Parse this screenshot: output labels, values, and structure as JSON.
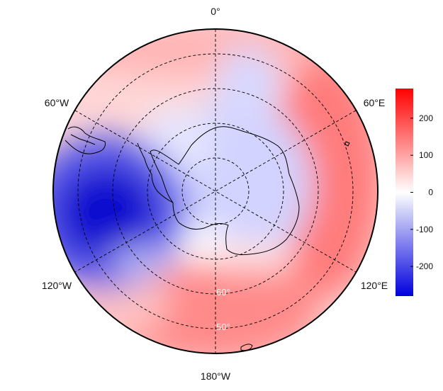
{
  "map": {
    "projection": "south-polar stereographic",
    "longitude_labels": {
      "top": "0°",
      "upper_left": "60°W",
      "upper_right": "60°E",
      "lower_left": "120°W",
      "lower_right": "120°E",
      "bottom": "180°W"
    },
    "latitude_labels": [
      "60°",
      "50°"
    ],
    "coastline_color": "#000000",
    "graticule_color": "#000000"
  },
  "colorbar": {
    "range": [
      -280,
      280
    ],
    "ticks": [
      "200",
      "100",
      "0",
      "-100",
      "-200"
    ],
    "tick_values": [
      200,
      100,
      0,
      -100,
      -200
    ],
    "colors": {
      "high": "#ff0000",
      "mid": "#ffffff",
      "low": "#0000dd"
    }
  },
  "field_description": {
    "blue_anomaly": "strong negative centred west of the Antarctic Peninsula (~90°W–120°W, 50–60°S)",
    "red_anomalies": "positive values over 60°E–120°E sector and south of New Zealand toward 180°, weaker positive ring near 0°"
  }
}
